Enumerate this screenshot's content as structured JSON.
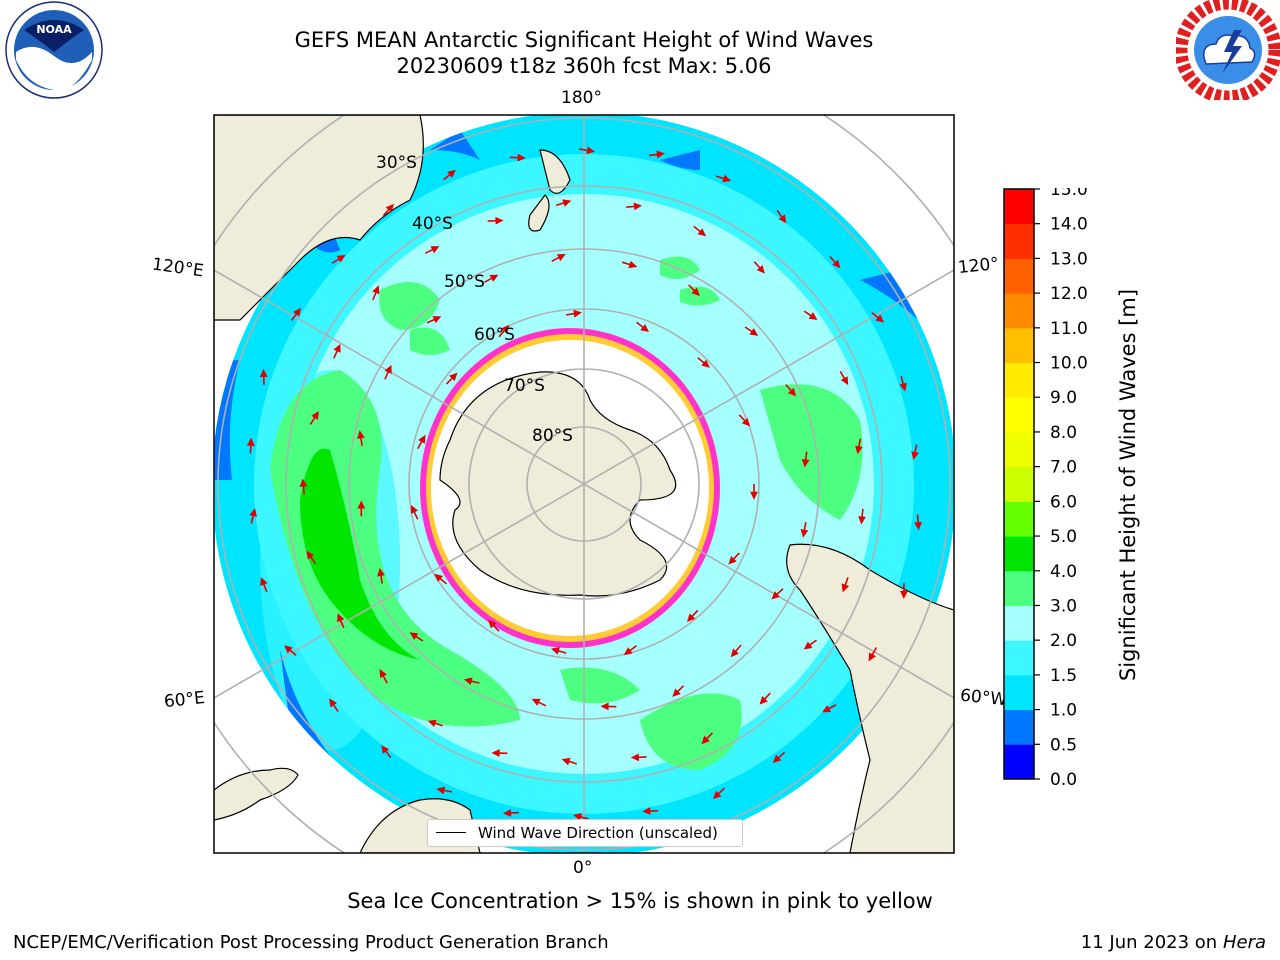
{
  "title": {
    "line1": "GEFS MEAN Antarctic Significant Height of Wind Waves",
    "line2": "20230609 t18z 360h fcst   Max: 5.06"
  },
  "logos": {
    "left": "noaa-logo",
    "right": "nws-logo"
  },
  "map": {
    "projection": "south-polar-stereographic",
    "longitude_labels": [
      "180°",
      "120°E",
      "120°",
      "60°E",
      "60°W",
      "0°"
    ],
    "latitude_labels": [
      "30°S",
      "40°S",
      "50°S",
      "60°S",
      "70°S",
      "80°S"
    ],
    "colors": {
      "land": "#efecda",
      "ice_shelf": "#ffffff",
      "sea_ice_edge": "#ff33cc",
      "sea_ice_highlight": "#ffcc33",
      "arrow": "#e00000",
      "gridline": "#b0b0b0"
    }
  },
  "legend": {
    "entry": "Wind Wave Direction (unscaled)"
  },
  "colorbar": {
    "label": "Significant Height of Wind Waves [m]",
    "ticks": [
      "0.0",
      "0.5",
      "1.0",
      "1.5",
      "2.0",
      "3.0",
      "4.0",
      "5.0",
      "6.0",
      "7.0",
      "8.0",
      "9.0",
      "10.0",
      "11.0",
      "12.0",
      "13.0",
      "14.0",
      "15.0"
    ],
    "colors": [
      "#0000ff",
      "#0077ff",
      "#00e5ff",
      "#3cf7ff",
      "#a5ffff",
      "#4dff80",
      "#00e600",
      "#66ff00",
      "#ccff00",
      "#f0ff00",
      "#ffff00",
      "#ffea00",
      "#ffbf00",
      "#ff8c00",
      "#ff6000",
      "#ff3000",
      "#ff0000"
    ]
  },
  "notes": {
    "sea_ice": "Sea Ice Concentration > 15% is shown in pink to yellow",
    "credit": "NCEP/EMC/Verification Post Processing Product Generation Branch",
    "date": "11 Jun 2023 on",
    "host": "Hera"
  }
}
